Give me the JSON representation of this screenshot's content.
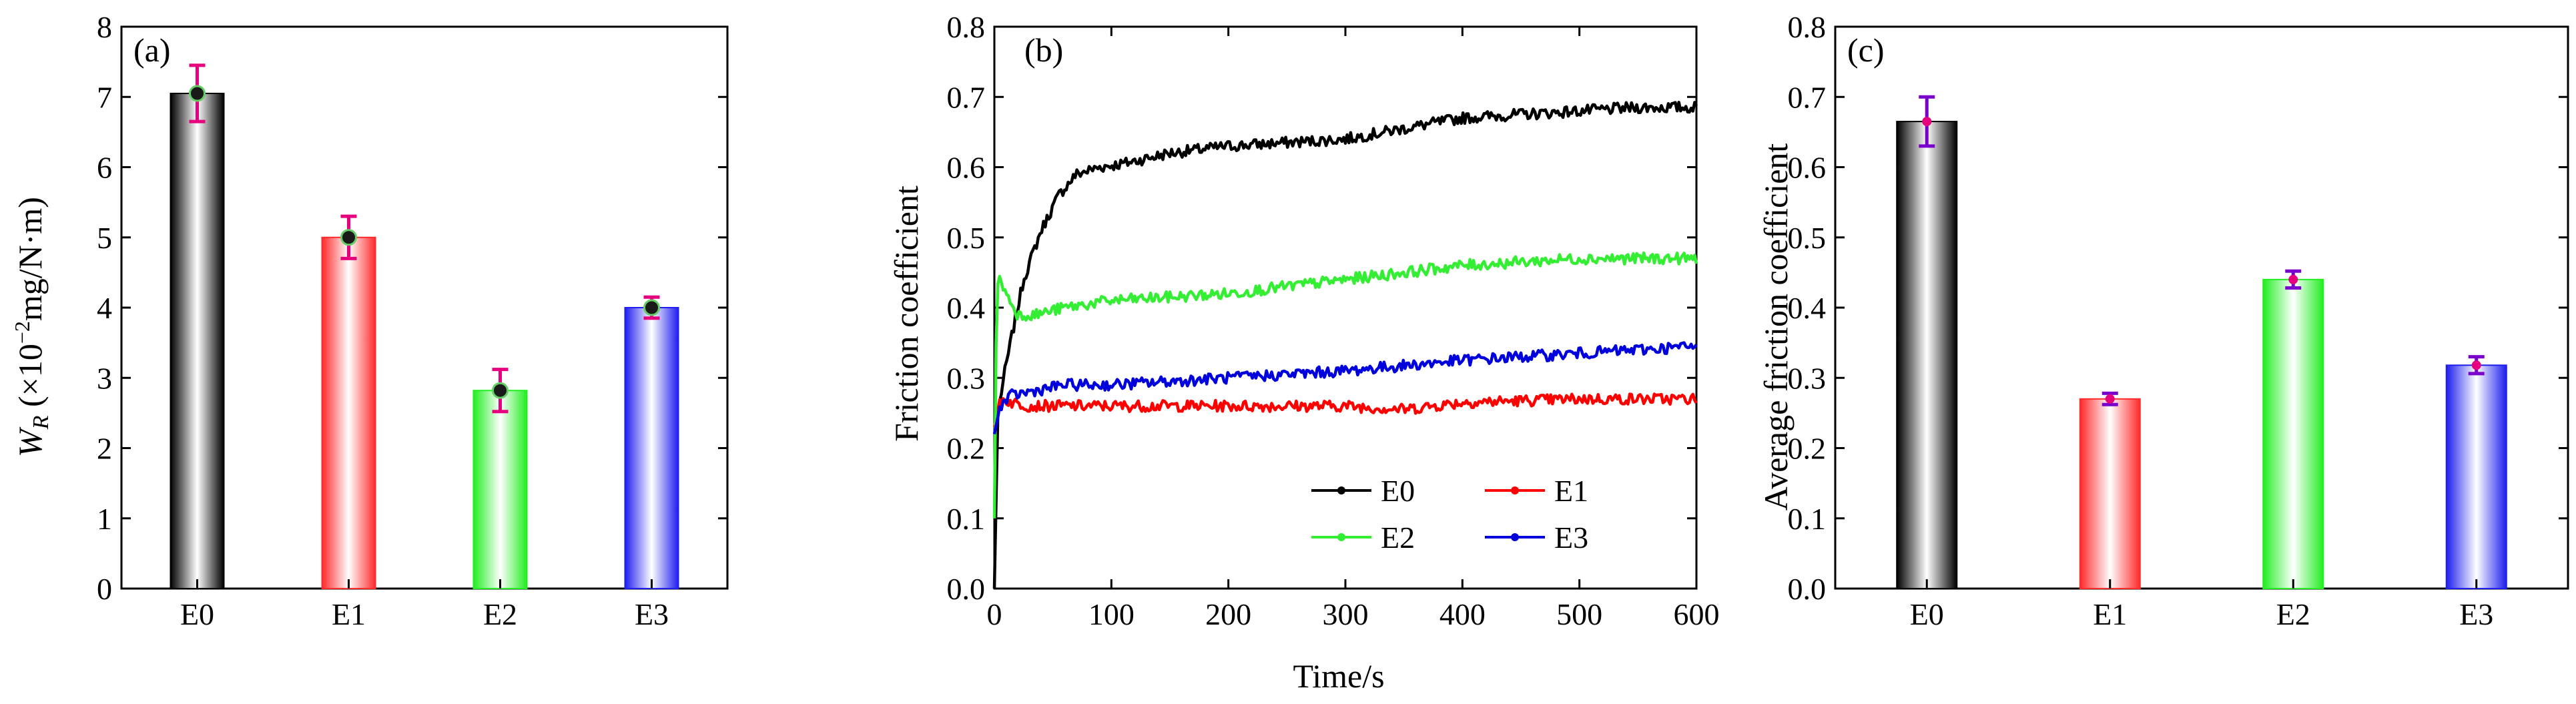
{
  "chart_data": [
    {
      "panel": "(a)",
      "type": "bar",
      "ylabel_symbol": "W",
      "ylabel_subscript": "R",
      "ylabel_prefix": " (×10",
      "ylabel_exponent": "−2",
      "ylabel_suffix": "mg/N·m)",
      "xlabel": "",
      "categories": [
        "E0",
        "E1",
        "E2",
        "E3"
      ],
      "values": [
        7.05,
        5.0,
        2.82,
        4.0
      ],
      "errors": [
        0.4,
        0.3,
        0.3,
        0.15
      ],
      "ylim": [
        0,
        8
      ],
      "yticks": [
        0,
        1,
        2,
        3,
        4,
        5,
        6,
        7,
        8
      ],
      "ytick_labels": [
        "0",
        "1",
        "2",
        "3",
        "4",
        "5",
        "6",
        "7",
        "8"
      ],
      "colors": [
        "#000000",
        "#ff2a2a",
        "#22ee22",
        "#1e1eee"
      ],
      "error_color": "#e6007e"
    },
    {
      "panel": "(b)",
      "type": "line",
      "xlabel": "Time/s",
      "ylabel": "Friction coefficient",
      "xlim": [
        0,
        600
      ],
      "ylim": [
        0,
        0.8
      ],
      "xticks": [
        0,
        100,
        200,
        300,
        400,
        500,
        600
      ],
      "xtick_labels": [
        "0",
        "100",
        "200",
        "300",
        "400",
        "500",
        "600"
      ],
      "yticks": [
        0,
        0.1,
        0.2,
        0.3,
        0.4,
        0.5,
        0.6,
        0.7,
        0.8
      ],
      "ytick_labels": [
        "0.0",
        "0.1",
        "0.2",
        "0.3",
        "0.4",
        "0.5",
        "0.6",
        "0.7",
        "0.8"
      ],
      "series": [
        {
          "name": "E0",
          "color": "#000000",
          "x": [
            0,
            3,
            8,
            15,
            25,
            40,
            55,
            70,
            90,
            110,
            150,
            200,
            250,
            300,
            350,
            400,
            450,
            500,
            550,
            600
          ],
          "y": [
            0.0,
            0.25,
            0.3,
            0.36,
            0.44,
            0.51,
            0.56,
            0.59,
            0.6,
            0.605,
            0.62,
            0.63,
            0.635,
            0.64,
            0.655,
            0.67,
            0.675,
            0.68,
            0.685,
            0.685
          ]
        },
        {
          "name": "E1",
          "color": "#ff0000",
          "x": [
            0,
            5,
            15,
            30,
            100,
            200,
            300,
            350,
            400,
            500,
            600
          ],
          "y": [
            0.23,
            0.27,
            0.265,
            0.26,
            0.26,
            0.26,
            0.26,
            0.255,
            0.265,
            0.27,
            0.27
          ]
        },
        {
          "name": "E2",
          "color": "#33ee33",
          "x": [
            0,
            2,
            5,
            10,
            20,
            35,
            60,
            100,
            200,
            300,
            400,
            500,
            600
          ],
          "y": [
            0.1,
            0.43,
            0.44,
            0.42,
            0.39,
            0.39,
            0.4,
            0.41,
            0.42,
            0.44,
            0.46,
            0.47,
            0.47
          ]
        },
        {
          "name": "E3",
          "color": "#0000dd",
          "x": [
            0,
            5,
            15,
            30,
            60,
            100,
            200,
            300,
            400,
            500,
            600
          ],
          "y": [
            0.22,
            0.26,
            0.275,
            0.28,
            0.29,
            0.29,
            0.3,
            0.31,
            0.325,
            0.335,
            0.345
          ]
        }
      ],
      "legend_order": [
        "E0",
        "E1",
        "E2",
        "E3"
      ],
      "legend_placement": "bottom-right"
    },
    {
      "panel": "(c)",
      "type": "bar",
      "xlabel": "",
      "ylabel": "Average friction coefficient",
      "categories": [
        "E0",
        "E1",
        "E2",
        "E3"
      ],
      "values": [
        0.665,
        0.27,
        0.44,
        0.318
      ],
      "errors": [
        0.035,
        0.008,
        0.012,
        0.012
      ],
      "ylim": [
        0,
        0.8
      ],
      "yticks": [
        0,
        0.1,
        0.2,
        0.3,
        0.4,
        0.5,
        0.6,
        0.7,
        0.8
      ],
      "ytick_labels": [
        "0.0",
        "0.1",
        "0.2",
        "0.3",
        "0.4",
        "0.5",
        "0.6",
        "0.7",
        "0.8"
      ],
      "colors": [
        "#000000",
        "#ff2a2a",
        "#22ee22",
        "#1e1eee"
      ],
      "error_color": "#7a00cc",
      "marker_color": "#e6007e"
    }
  ]
}
